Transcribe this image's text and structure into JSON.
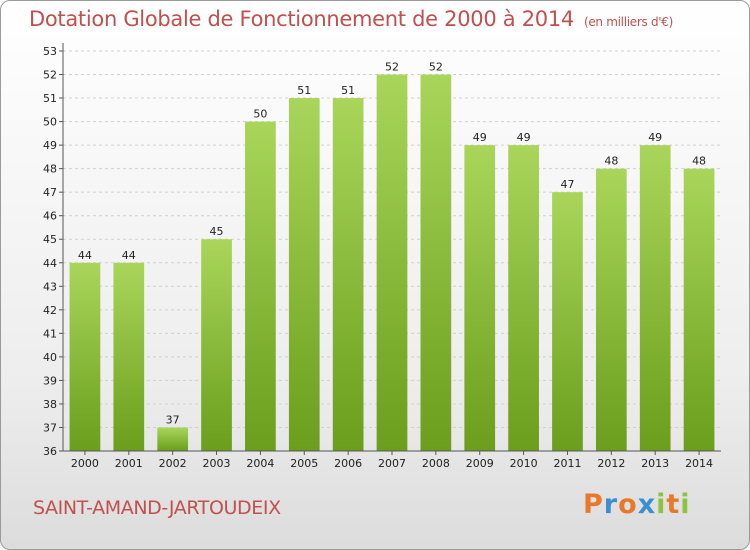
{
  "header": {
    "title": "Dotation Globale de Fonctionnement de 2000 à 2014",
    "subtitle": "(en milliers d'€)"
  },
  "footer": {
    "commune": "SAINT-AMAND-JARTOUDEIX",
    "logo": [
      "P",
      "r",
      "o",
      "x",
      "i",
      "t",
      "i"
    ]
  },
  "colors": {
    "title": "#c0504d",
    "bar_light": "#a9d65a",
    "bar_dark": "#6a9e1c"
  },
  "chart_data": {
    "type": "bar",
    "title": "Dotation Globale de Fonctionnement de 2000 à 2014",
    "subtitle": "(en milliers d'€)",
    "xlabel": "",
    "ylabel": "",
    "categories": [
      "2000",
      "2001",
      "2002",
      "2003",
      "2004",
      "2005",
      "2006",
      "2007",
      "2008",
      "2009",
      "2010",
      "2011",
      "2012",
      "2013",
      "2014"
    ],
    "values": [
      44,
      44,
      37,
      45,
      50,
      51,
      51,
      52,
      52,
      49,
      49,
      47,
      48,
      49,
      48
    ],
    "ylim": [
      36,
      53
    ],
    "yticks": [
      36,
      37,
      38,
      39,
      40,
      41,
      42,
      43,
      44,
      45,
      46,
      47,
      48,
      49,
      50,
      51,
      52,
      53
    ],
    "grid": true,
    "data_labels": true
  }
}
